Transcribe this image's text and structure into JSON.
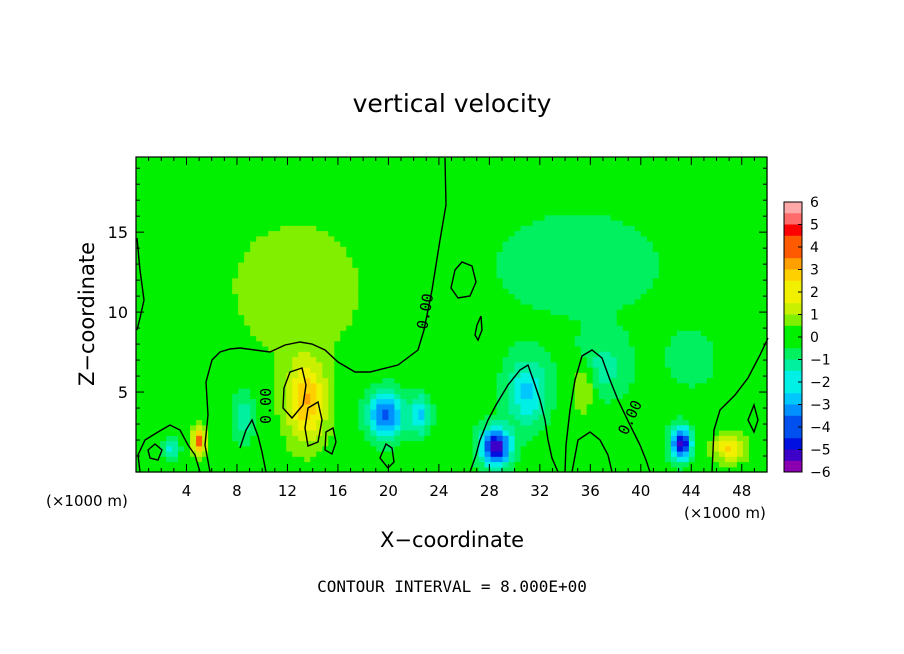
{
  "chart_data": {
    "type": "heatmap",
    "title": "vertical velocity",
    "xlabel": "X−coordinate",
    "ylabel": "Z−coordinate",
    "x_unit_left": "(×1000 m)",
    "x_unit_right": "(×1000 m)",
    "footer": "CONTOUR INTERVAL = 8.000E+00",
    "xlim": [
      0,
      50
    ],
    "ylim": [
      0,
      19.7
    ],
    "x_ticks": [
      4,
      8,
      12,
      16,
      20,
      24,
      28,
      32,
      36,
      40,
      44,
      48
    ],
    "y_ticks": [
      5,
      10,
      15
    ],
    "colorbar": {
      "ticks": [
        6,
        5,
        4,
        3,
        2,
        1,
        0,
        -1,
        -2,
        -3,
        -4,
        -5,
        -6
      ],
      "tick_labels": [
        "6",
        "5",
        "4",
        "3",
        "2",
        "1",
        "0",
        "−1",
        "−2",
        "−3",
        "−4",
        "−5",
        "−6"
      ],
      "range": [
        -6,
        6
      ]
    },
    "contour_labels": [
      "0.00",
      "0.00",
      "0.00"
    ],
    "colors": [
      "#8a00b0",
      "#3d00c8",
      "#0010e0",
      "#0050f0",
      "#0090ff",
      "#00c8ff",
      "#00f0e6",
      "#00f0a0",
      "#00f060",
      "#00f000",
      "#80f000",
      "#c8f000",
      "#f0f000",
      "#ffd000",
      "#ffa000",
      "#ff5a00",
      "#ff0000",
      "#ff6a6a",
      "#ffa8a8"
    ],
    "features": [
      {
        "x": 13.5,
        "z": 4.5,
        "w": 3.0,
        "sx": 1.6,
        "sz": 2.5
      },
      {
        "x": 12.8,
        "z": 11.5,
        "w": 0.9,
        "sx": 5.0,
        "sz": 4.0
      },
      {
        "x": 5.0,
        "z": 2.0,
        "w": 4.0,
        "sx": 0.5,
        "sz": 0.8
      },
      {
        "x": 2.8,
        "z": 1.5,
        "w": -2.0,
        "sx": 0.6,
        "sz": 0.6
      },
      {
        "x": 8.5,
        "z": 3.5,
        "w": -1.5,
        "sx": 0.9,
        "sz": 1.5
      },
      {
        "x": 19.8,
        "z": 3.6,
        "w": -4.0,
        "sx": 1.4,
        "sz": 1.4
      },
      {
        "x": 22.5,
        "z": 3.6,
        "w": -2.5,
        "sx": 0.8,
        "sz": 1.2
      },
      {
        "x": 28.5,
        "z": 1.6,
        "w": -5.5,
        "sx": 1.2,
        "sz": 1.2
      },
      {
        "x": 31.0,
        "z": 5.0,
        "w": -2.5,
        "sx": 1.6,
        "sz": 2.0
      },
      {
        "x": 37.0,
        "z": 6.5,
        "w": -1.3,
        "sx": 2.0,
        "sz": 1.8
      },
      {
        "x": 43.2,
        "z": 1.8,
        "w": -5.5,
        "sx": 0.8,
        "sz": 1.0
      },
      {
        "x": 47.0,
        "z": 1.5,
        "w": 2.5,
        "sx": 1.2,
        "sz": 0.8
      },
      {
        "x": 35.5,
        "z": 5.5,
        "w": 1.5,
        "sx": 0.8,
        "sz": 1.6
      },
      {
        "x": 35.0,
        "z": 13.0,
        "w": -0.5,
        "sx": 10.0,
        "sz": 5.0
      },
      {
        "x": 44.0,
        "z": 7.0,
        "w": -0.7,
        "sx": 2.0,
        "sz": 1.8
      }
    ]
  }
}
